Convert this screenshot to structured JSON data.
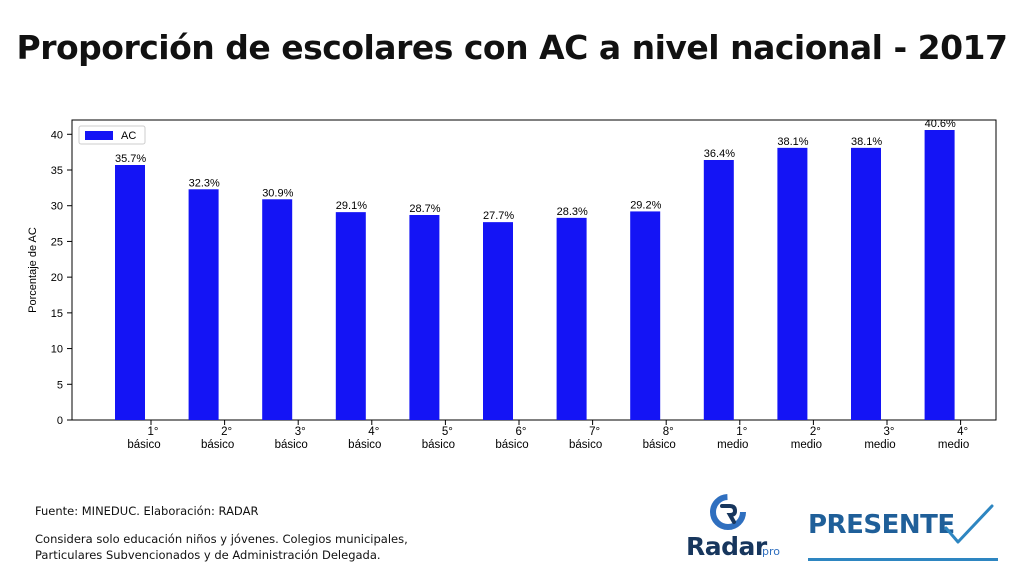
{
  "slide": {
    "title": "Proporción de escolares con AC a nivel nacional - 2017"
  },
  "footnotes": {
    "source": "Fuente: MINEDUC. Elaboración: RADAR",
    "note_line1": "Considera solo educación niños y jóvenes. Colegios municipales,",
    "note_line2": "Particulares Subvencionados y de Administración Delegada."
  },
  "logos": {
    "radar_word": "Radar",
    "radar_pro": "pro",
    "presente_word": "PRESENTE"
  },
  "chart_data": {
    "type": "bar",
    "categories": [
      [
        "1°",
        "básico"
      ],
      [
        "2°",
        "básico"
      ],
      [
        "3°",
        "básico"
      ],
      [
        "4°",
        "básico"
      ],
      [
        "5°",
        "básico"
      ],
      [
        "6°",
        "básico"
      ],
      [
        "7°",
        "básico"
      ],
      [
        "8°",
        "básico"
      ],
      [
        "1°",
        "medio"
      ],
      [
        "2°",
        "medio"
      ],
      [
        "3°",
        "medio"
      ],
      [
        "4°",
        "medio"
      ]
    ],
    "series": [
      {
        "name": "AC",
        "color": "#1414f5",
        "values": [
          35.7,
          32.3,
          30.9,
          29.1,
          28.7,
          27.7,
          28.3,
          29.2,
          36.4,
          38.1,
          38.1,
          40.6
        ],
        "labels": [
          "35.7%",
          "32.3%",
          "30.9%",
          "29.1%",
          "28.7%",
          "27.7%",
          "28.3%",
          "29.2%",
          "36.4%",
          "38.1%",
          "38.1%",
          "40.6%"
        ]
      }
    ],
    "title": "",
    "xlabel": "",
    "ylabel": "Porcentaje de AC",
    "ylim": [
      0,
      42
    ],
    "yticks": [
      0,
      5,
      10,
      15,
      20,
      25,
      30,
      35,
      40
    ],
    "grid": false,
    "legend": "top-left"
  }
}
